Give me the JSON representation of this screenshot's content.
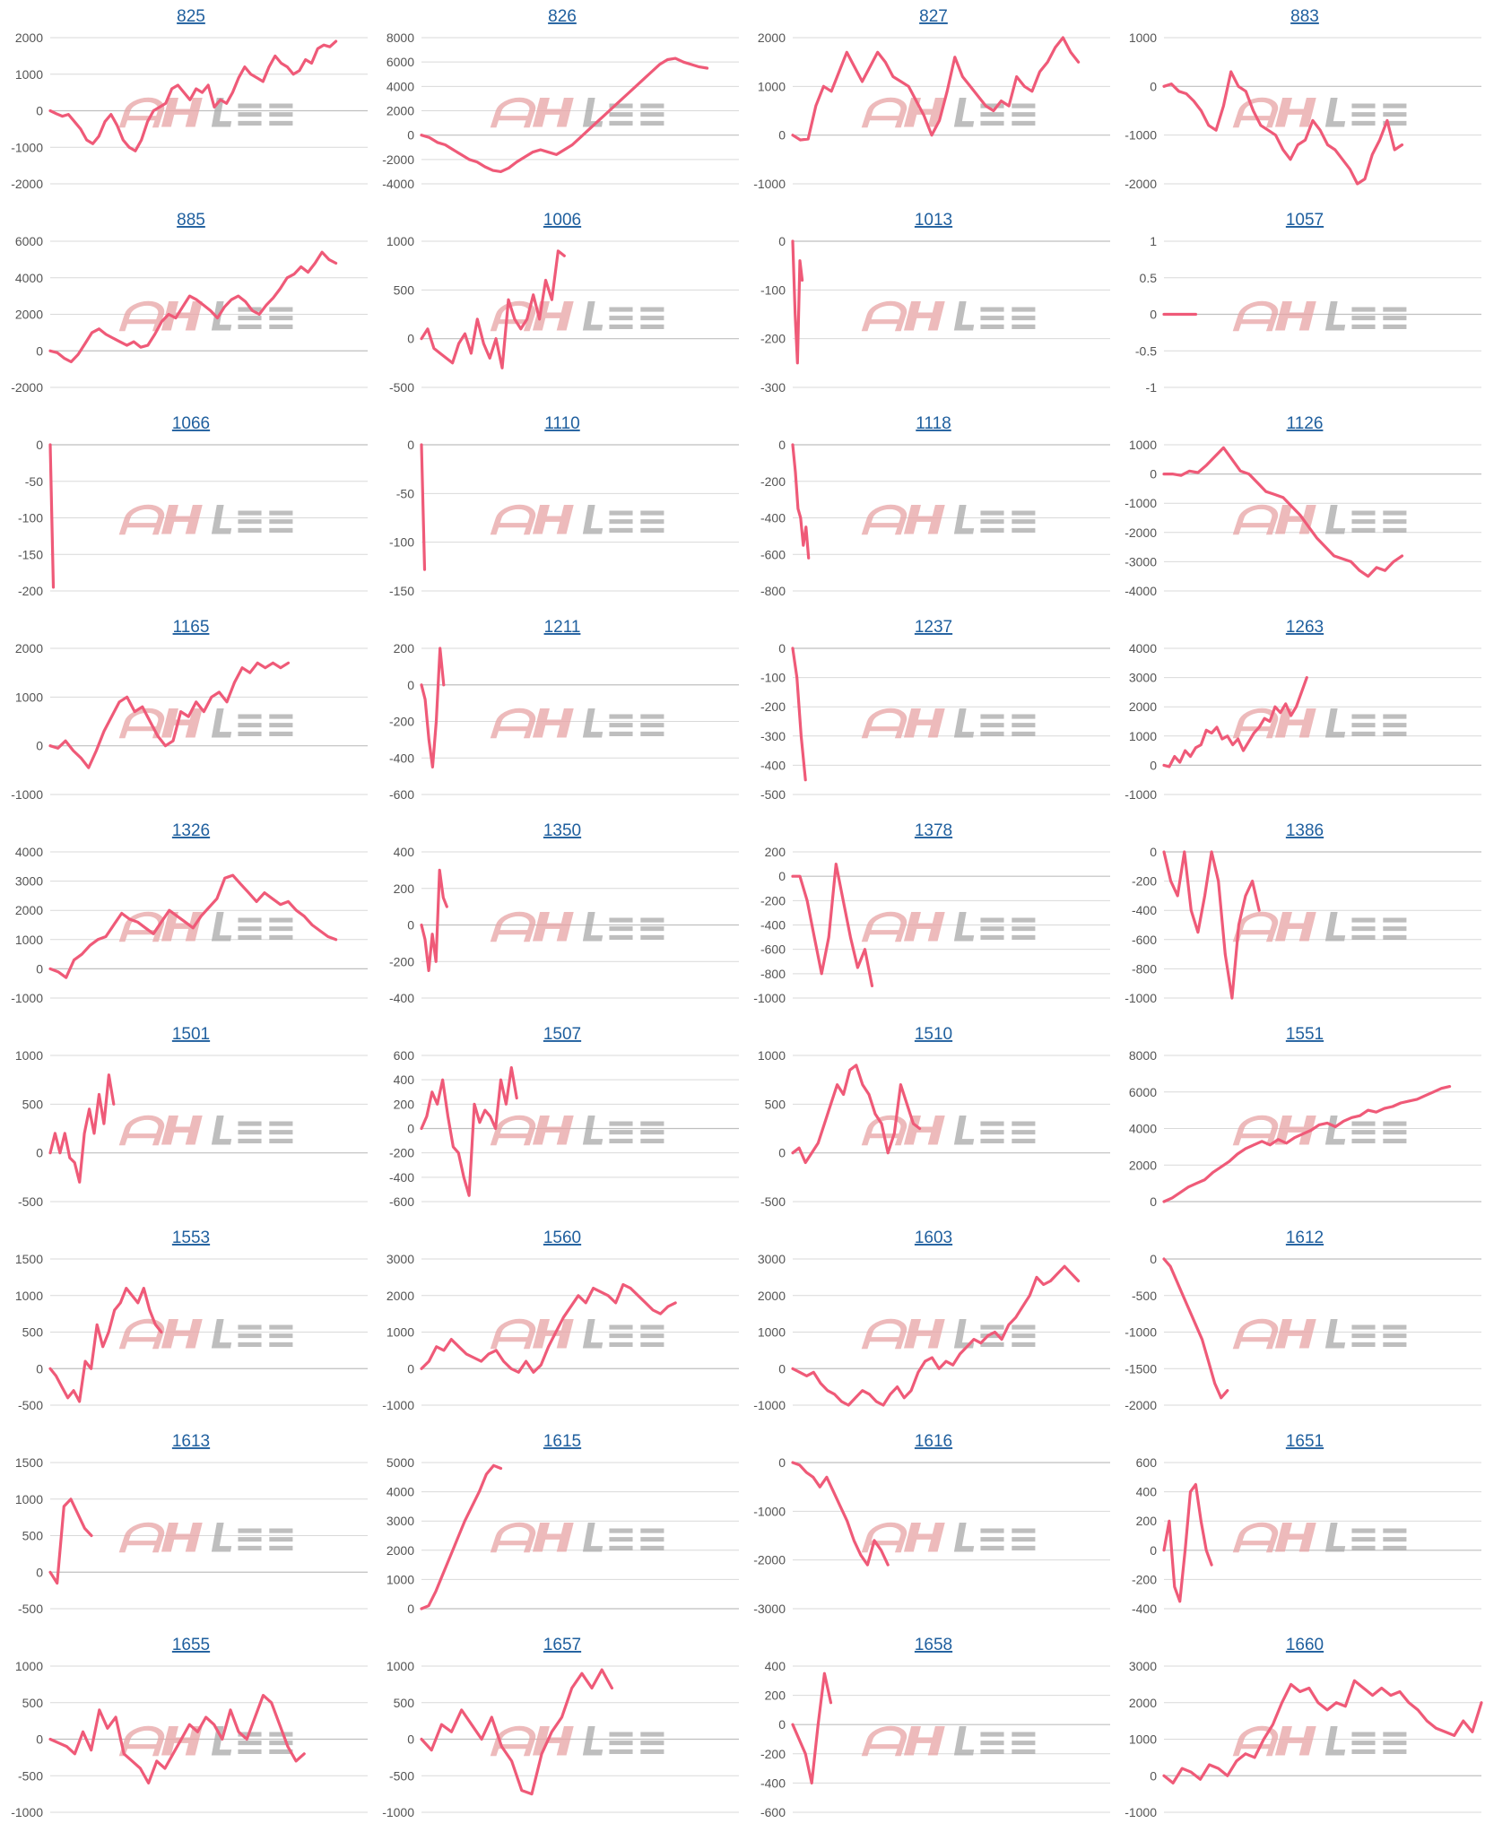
{
  "line_color": "#ef5a78",
  "title_color": "#1f5f9e",
  "watermark_icon": "logo-watermark",
  "chart_data": [
    {
      "type": "line",
      "title": "825",
      "ylim": [
        -2000,
        2000
      ],
      "yticks": [
        -2000,
        -1000,
        0,
        1000,
        2000
      ],
      "x_end": 0.9,
      "values": [
        0,
        -80,
        -150,
        -100,
        -300,
        -500,
        -800,
        -900,
        -700,
        -300,
        -100,
        -400,
        -800,
        -1000,
        -1100,
        -800,
        -300,
        0,
        100,
        200,
        600,
        700,
        500,
        300,
        600,
        500,
        700,
        100,
        300,
        200,
        500,
        900,
        1200,
        1000,
        900,
        800,
        1200,
        1500,
        1300,
        1200,
        1000,
        1100,
        1400,
        1300,
        1700,
        1800,
        1750,
        1900
      ]
    },
    {
      "type": "line",
      "title": "826",
      "ylim": [
        -4000,
        8000
      ],
      "yticks": [
        -4000,
        -2000,
        0,
        2000,
        4000,
        6000,
        8000
      ],
      "x_end": 0.9,
      "values": [
        0,
        -200,
        -600,
        -800,
        -1200,
        -1600,
        -2000,
        -2200,
        -2600,
        -2900,
        -3000,
        -2700,
        -2200,
        -1800,
        -1400,
        -1200,
        -1400,
        -1600,
        -1200,
        -800,
        -200,
        400,
        1000,
        1600,
        2200,
        2800,
        3400,
        4000,
        4600,
        5200,
        5800,
        6200,
        6300,
        6000,
        5800,
        5600,
        5500
      ]
    },
    {
      "type": "line",
      "title": "827",
      "ylim": [
        -1000,
        2000
      ],
      "yticks": [
        -1000,
        0,
        1000,
        2000
      ],
      "x_end": 0.9,
      "values": [
        0,
        -100,
        -80,
        600,
        1000,
        900,
        1300,
        1700,
        1400,
        1100,
        1400,
        1700,
        1500,
        1200,
        1100,
        1000,
        700,
        400,
        0,
        300,
        900,
        1600,
        1200,
        1000,
        800,
        600,
        500,
        700,
        600,
        1200,
        1000,
        900,
        1300,
        1500,
        1800,
        2000,
        1700,
        1500
      ]
    },
    {
      "type": "line",
      "title": "883",
      "ylim": [
        -2000,
        1000
      ],
      "yticks": [
        -2000,
        -1000,
        0,
        1000
      ],
      "x_end": 0.75,
      "values": [
        0,
        50,
        -100,
        -150,
        -300,
        -500,
        -800,
        -900,
        -400,
        300,
        0,
        -100,
        -500,
        -800,
        -900,
        -1000,
        -1300,
        -1500,
        -1200,
        -1100,
        -700,
        -900,
        -1200,
        -1300,
        -1500,
        -1700,
        -2000,
        -1900,
        -1400,
        -1100,
        -700,
        -1300,
        -1200
      ]
    },
    {
      "type": "line",
      "title": "885",
      "ylim": [
        -2000,
        6000
      ],
      "yticks": [
        -2000,
        0,
        2000,
        4000,
        6000
      ],
      "x_end": 0.9,
      "values": [
        0,
        -100,
        -400,
        -600,
        -200,
        400,
        1000,
        1200,
        900,
        700,
        500,
        300,
        500,
        200,
        300,
        900,
        1600,
        2000,
        1800,
        2400,
        3000,
        2800,
        2500,
        2200,
        1800,
        2400,
        2800,
        3000,
        2700,
        2200,
        2000,
        2500,
        2900,
        3400,
        4000,
        4200,
        4600,
        4300,
        4800,
        5400,
        5000,
        4800
      ]
    },
    {
      "type": "line",
      "title": "1006",
      "ylim": [
        -500,
        1000
      ],
      "yticks": [
        -500,
        0,
        500,
        1000
      ],
      "x_end": 0.45,
      "values": [
        0,
        100,
        -100,
        -150,
        -200,
        -250,
        -50,
        50,
        -150,
        200,
        -50,
        -200,
        0,
        -300,
        400,
        200,
        100,
        200,
        450,
        200,
        600,
        400,
        900,
        850
      ]
    },
    {
      "type": "line",
      "title": "1013",
      "ylim": [
        -300,
        0
      ],
      "yticks": [
        -300,
        -200,
        -100,
        0
      ],
      "x_end": 0.03,
      "values": [
        0,
        -150,
        -250,
        -40,
        -80
      ]
    },
    {
      "type": "line",
      "title": "1057",
      "ylim": [
        -1,
        1
      ],
      "yticks": [
        -1.0,
        -0.5,
        0,
        0.5,
        1.0
      ],
      "x_end": 0.1,
      "values": [
        0,
        0,
        0,
        0
      ]
    },
    {
      "type": "line",
      "title": "1066",
      "ylim": [
        -200,
        0
      ],
      "yticks": [
        -200,
        -150,
        -100,
        -50,
        0
      ],
      "x_end": 0.01,
      "values": [
        0,
        -195
      ]
    },
    {
      "type": "line",
      "title": "1110",
      "ylim": [
        -150,
        0
      ],
      "yticks": [
        -150,
        -100,
        -50,
        0
      ],
      "x_end": 0.01,
      "values": [
        0,
        -128
      ]
    },
    {
      "type": "line",
      "title": "1118",
      "ylim": [
        -800,
        0
      ],
      "yticks": [
        -800,
        -600,
        -400,
        -200,
        0
      ],
      "x_end": 0.05,
      "values": [
        0,
        -150,
        -350,
        -400,
        -550,
        -450,
        -620
      ]
    },
    {
      "type": "line",
      "title": "1126",
      "ylim": [
        -4000,
        1000
      ],
      "yticks": [
        -4000,
        -3000,
        -2000,
        -1000,
        0,
        1000
      ],
      "x_end": 0.75,
      "values": [
        0,
        0,
        -50,
        100,
        50,
        300,
        600,
        900,
        500,
        100,
        0,
        -300,
        -600,
        -700,
        -800,
        -1100,
        -1400,
        -1800,
        -2200,
        -2500,
        -2800,
        -2900,
        -3000,
        -3300,
        -3500,
        -3200,
        -3300,
        -3000,
        -2800
      ]
    },
    {
      "type": "line",
      "title": "1165",
      "ylim": [
        -1000,
        2000
      ],
      "yticks": [
        -1000,
        0,
        1000,
        2000
      ],
      "x_end": 0.75,
      "values": [
        0,
        -50,
        100,
        -100,
        -250,
        -450,
        -100,
        300,
        600,
        900,
        1000,
        700,
        800,
        500,
        200,
        0,
        100,
        700,
        600,
        900,
        700,
        1000,
        1100,
        900,
        1300,
        1600,
        1500,
        1700,
        1600,
        1700,
        1600,
        1700
      ]
    },
    {
      "type": "line",
      "title": "1211",
      "ylim": [
        -600,
        200
      ],
      "yticks": [
        -600,
        -400,
        -200,
        0,
        200
      ],
      "x_end": 0.07,
      "values": [
        0,
        -80,
        -300,
        -450,
        -200,
        200,
        0
      ]
    },
    {
      "type": "line",
      "title": "1237",
      "ylim": [
        -500,
        0
      ],
      "yticks": [
        -500,
        -400,
        -300,
        -200,
        -100,
        0
      ],
      "x_end": 0.04,
      "values": [
        0,
        -100,
        -300,
        -450
      ]
    },
    {
      "type": "line",
      "title": "1263",
      "ylim": [
        -1000,
        4000
      ],
      "yticks": [
        -1000,
        0,
        1000,
        2000,
        3000,
        4000
      ],
      "x_end": 0.45,
      "values": [
        0,
        -50,
        300,
        100,
        500,
        300,
        600,
        700,
        1200,
        1100,
        1300,
        900,
        1000,
        700,
        900,
        500,
        800,
        1100,
        1300,
        1600,
        1500,
        2000,
        1800,
        2100,
        1700,
        2000,
        2500,
        3000
      ]
    },
    {
      "type": "line",
      "title": "1326",
      "ylim": [
        -1000,
        4000
      ],
      "yticks": [
        -1000,
        0,
        1000,
        2000,
        3000,
        4000
      ],
      "x_end": 0.9,
      "values": [
        0,
        -100,
        -300,
        300,
        500,
        800,
        1000,
        1100,
        1500,
        1900,
        1700,
        1600,
        1400,
        1200,
        1600,
        2000,
        1800,
        1600,
        1400,
        1800,
        2100,
        2400,
        3100,
        3200,
        2900,
        2600,
        2300,
        2600,
        2400,
        2200,
        2300,
        2000,
        1800,
        1500,
        1300,
        1100,
        1000
      ]
    },
    {
      "type": "line",
      "title": "1350",
      "ylim": [
        -400,
        400
      ],
      "yticks": [
        -400,
        -200,
        0,
        200,
        400
      ],
      "x_end": 0.08,
      "values": [
        0,
        -80,
        -250,
        -50,
        -200,
        300,
        150,
        100
      ]
    },
    {
      "type": "line",
      "title": "1378",
      "ylim": [
        -1000,
        200
      ],
      "yticks": [
        -1000,
        -800,
        -600,
        -400,
        -200,
        0,
        200
      ],
      "x_end": 0.25,
      "values": [
        0,
        0,
        -200,
        -500,
        -800,
        -500,
        100,
        -200,
        -500,
        -750,
        -600,
        -900
      ]
    },
    {
      "type": "line",
      "title": "1386",
      "ylim": [
        -1000,
        0
      ],
      "yticks": [
        -1000,
        -800,
        -600,
        -400,
        -200,
        0
      ],
      "x_end": 0.3,
      "values": [
        0,
        -200,
        -300,
        0,
        -400,
        -550,
        -300,
        0,
        -200,
        -700,
        -1000,
        -500,
        -300,
        -200,
        -400
      ]
    },
    {
      "type": "line",
      "title": "1501",
      "ylim": [
        -500,
        1000
      ],
      "yticks": [
        -500,
        0,
        500,
        1000
      ],
      "x_end": 0.2,
      "values": [
        0,
        200,
        0,
        200,
        -50,
        -100,
        -300,
        200,
        450,
        200,
        600,
        300,
        800,
        500
      ]
    },
    {
      "type": "line",
      "title": "1507",
      "ylim": [
        -600,
        600
      ],
      "yticks": [
        -600,
        -400,
        -200,
        0,
        200,
        400,
        600
      ],
      "x_end": 0.3,
      "values": [
        0,
        100,
        300,
        200,
        400,
        100,
        -150,
        -200,
        -400,
        -550,
        200,
        50,
        150,
        100,
        0,
        400,
        200,
        500,
        250
      ]
    },
    {
      "type": "line",
      "title": "1510",
      "ylim": [
        -500,
        1000
      ],
      "yticks": [
        -500,
        0,
        500,
        1000
      ],
      "x_end": 0.4,
      "values": [
        0,
        50,
        -100,
        0,
        100,
        300,
        500,
        700,
        600,
        850,
        900,
        700,
        600,
        400,
        300,
        0,
        200,
        700,
        500,
        300,
        250
      ]
    },
    {
      "type": "line",
      "title": "1551",
      "ylim": [
        0,
        8000
      ],
      "yticks": [
        0,
        2000,
        4000,
        6000,
        8000
      ],
      "x_end": 0.9,
      "values": [
        0,
        200,
        500,
        800,
        1000,
        1200,
        1600,
        1900,
        2200,
        2600,
        2900,
        3100,
        3300,
        3100,
        3400,
        3200,
        3500,
        3700,
        3900,
        4200,
        4300,
        4100,
        4400,
        4600,
        4700,
        5000,
        4900,
        5100,
        5200,
        5400,
        5500,
        5600,
        5800,
        6000,
        6200,
        6300
      ]
    },
    {
      "type": "line",
      "title": "1553",
      "ylim": [
        -500,
        1500
      ],
      "yticks": [
        -500,
        0,
        500,
        1000,
        1500
      ],
      "x_end": 0.35,
      "values": [
        0,
        -100,
        -250,
        -400,
        -300,
        -450,
        100,
        0,
        600,
        300,
        500,
        800,
        900,
        1100,
        1000,
        900,
        1100,
        800,
        600,
        500
      ]
    },
    {
      "type": "line",
      "title": "1560",
      "ylim": [
        -1000,
        3000
      ],
      "yticks": [
        -1000,
        0,
        1000,
        2000,
        3000
      ],
      "x_end": 0.8,
      "values": [
        0,
        200,
        600,
        500,
        800,
        600,
        400,
        300,
        200,
        400,
        500,
        200,
        0,
        -100,
        200,
        -100,
        100,
        600,
        1000,
        1400,
        1700,
        2000,
        1800,
        2200,
        2100,
        2000,
        1800,
        2300,
        2200,
        2000,
        1800,
        1600,
        1500,
        1700,
        1800
      ]
    },
    {
      "type": "line",
      "title": "1603",
      "ylim": [
        -1000,
        3000
      ],
      "yticks": [
        -1000,
        0,
        1000,
        2000,
        3000
      ],
      "x_end": 0.9,
      "values": [
        0,
        -100,
        -200,
        -100,
        -400,
        -600,
        -700,
        -900,
        -1000,
        -800,
        -600,
        -700,
        -900,
        -1000,
        -700,
        -500,
        -800,
        -600,
        -100,
        200,
        300,
        0,
        200,
        100,
        400,
        600,
        800,
        700,
        900,
        1000,
        800,
        1200,
        1400,
        1700,
        2000,
        2500,
        2300,
        2400,
        2600,
        2800,
        2600,
        2400
      ]
    },
    {
      "type": "line",
      "title": "1612",
      "ylim": [
        -2000,
        0
      ],
      "yticks": [
        -2000,
        -1500,
        -1000,
        -500,
        0
      ],
      "x_end": 0.2,
      "values": [
        0,
        -100,
        -300,
        -500,
        -700,
        -900,
        -1100,
        -1400,
        -1700,
        -1900,
        -1800
      ]
    },
    {
      "type": "line",
      "title": "1613",
      "ylim": [
        -500,
        1500
      ],
      "yticks": [
        -500,
        0,
        500,
        1000,
        1500
      ],
      "x_end": 0.13,
      "values": [
        0,
        -150,
        900,
        1000,
        800,
        600,
        500
      ]
    },
    {
      "type": "line",
      "title": "1615",
      "ylim": [
        0,
        5000
      ],
      "yticks": [
        0,
        1000,
        2000,
        3000,
        4000,
        5000
      ],
      "x_end": 0.25,
      "values": [
        0,
        100,
        600,
        1200,
        1800,
        2400,
        3000,
        3500,
        4000,
        4600,
        4900,
        4800
      ]
    },
    {
      "type": "line",
      "title": "1616",
      "ylim": [
        -3000,
        0
      ],
      "yticks": [
        -3000,
        -2000,
        -1000,
        0
      ],
      "x_end": 0.3,
      "values": [
        0,
        -50,
        -200,
        -300,
        -500,
        -300,
        -600,
        -900,
        -1200,
        -1600,
        -1900,
        -2100,
        -1600,
        -1800,
        -2100
      ]
    },
    {
      "type": "line",
      "title": "1651",
      "ylim": [
        -400,
        600
      ],
      "yticks": [
        -400,
        -200,
        0,
        200,
        400,
        600
      ],
      "x_end": 0.15,
      "values": [
        0,
        200,
        -250,
        -350,
        0,
        400,
        450,
        200,
        0,
        -100
      ]
    },
    {
      "type": "line",
      "title": "1655",
      "ylim": [
        -1000,
        1000
      ],
      "yticks": [
        -1000,
        -500,
        0,
        500,
        1000
      ],
      "x_end": 0.8,
      "values": [
        0,
        -50,
        -100,
        -200,
        100,
        -150,
        400,
        150,
        300,
        -200,
        -300,
        -400,
        -600,
        -300,
        -400,
        -200,
        0,
        200,
        100,
        300,
        200,
        0,
        400,
        100,
        0,
        300,
        600,
        500,
        200,
        -100,
        -300,
        -200
      ]
    },
    {
      "type": "line",
      "title": "1657",
      "ylim": [
        -1000,
        1000
      ],
      "yticks": [
        -1000,
        -500,
        0,
        500,
        1000
      ],
      "x_end": 0.6,
      "values": [
        0,
        -150,
        200,
        100,
        400,
        200,
        0,
        300,
        -100,
        -300,
        -700,
        -750,
        -200,
        100,
        300,
        700,
        900,
        700,
        950,
        700
      ]
    },
    {
      "type": "line",
      "title": "1658",
      "ylim": [
        -600,
        400
      ],
      "yticks": [
        -600,
        -400,
        -200,
        0,
        200,
        400
      ],
      "x_end": 0.12,
      "values": [
        0,
        -100,
        -200,
        -400,
        0,
        350,
        150
      ]
    },
    {
      "type": "line",
      "title": "1660",
      "ylim": [
        -1000,
        3000
      ],
      "yticks": [
        -1000,
        0,
        1000,
        2000,
        3000
      ],
      "x_end": 1.0,
      "values": [
        0,
        -200,
        200,
        100,
        -100,
        300,
        200,
        0,
        400,
        600,
        500,
        1000,
        1400,
        2000,
        2500,
        2300,
        2400,
        2000,
        1800,
        2000,
        1900,
        2600,
        2400,
        2200,
        2400,
        2200,
        2300,
        2000,
        1800,
        1500,
        1300,
        1200,
        1100,
        1500,
        1200,
        2000
      ]
    }
  ]
}
